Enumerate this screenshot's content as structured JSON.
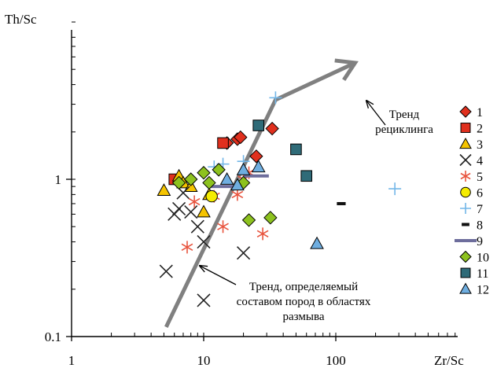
{
  "chart_data": {
    "type": "scatter",
    "xlabel": "Zr/Sc",
    "ylabel": "Th/Sc",
    "x_scale": "log",
    "y_scale": "log",
    "xlim": [
      1,
      300
    ],
    "ylim": [
      0.1,
      10
    ],
    "x_ticks": [
      {
        "value": 1,
        "label": "1"
      },
      {
        "value": 10,
        "label": "10"
      },
      {
        "value": 100,
        "label": "100"
      }
    ],
    "y_ticks": [
      {
        "value": 0.1,
        "label": "0.1"
      },
      {
        "value": 1,
        "label": "1"
      }
    ],
    "grid": false,
    "legend_position": "right",
    "series": [
      {
        "label": "1",
        "marker": "diamond",
        "color": "#e0301e",
        "points": [
          [
            15,
            1.7
          ],
          [
            18,
            1.8
          ],
          [
            19,
            1.85
          ],
          [
            25,
            1.4
          ],
          [
            33,
            2.1
          ]
        ]
      },
      {
        "label": "2",
        "marker": "square",
        "color": "#e0301e",
        "points": [
          [
            6,
            1.0
          ],
          [
            14,
            1.7
          ]
        ]
      },
      {
        "label": "3",
        "marker": "triangle",
        "color": "#f5c400",
        "points": [
          [
            5,
            0.85
          ],
          [
            6.5,
            1.05
          ],
          [
            7,
            0.95
          ],
          [
            8,
            0.9
          ],
          [
            10,
            0.62
          ],
          [
            11,
            0.8
          ]
        ]
      },
      {
        "label": "4",
        "marker": "x",
        "color": "#222222",
        "points": [
          [
            5.2,
            0.26
          ],
          [
            6,
            0.6
          ],
          [
            6.5,
            0.65
          ],
          [
            7,
            0.82
          ],
          [
            8,
            0.62
          ],
          [
            9,
            0.5
          ],
          [
            10,
            0.4
          ],
          [
            10,
            0.17
          ],
          [
            20,
            0.34
          ]
        ]
      },
      {
        "label": "5",
        "marker": "asterisk",
        "color": "#e8553f",
        "points": [
          [
            7.5,
            0.37
          ],
          [
            8.5,
            0.72
          ],
          [
            12,
            0.78
          ],
          [
            14,
            0.5
          ],
          [
            18,
            0.8
          ],
          [
            20,
            1.0
          ],
          [
            22,
            1.1
          ],
          [
            28,
            0.45
          ]
        ]
      },
      {
        "label": "6",
        "marker": "circle",
        "color": "#f5ec00",
        "points": [
          [
            11.5,
            0.78
          ]
        ]
      },
      {
        "label": "7",
        "marker": "plus",
        "color": "#73b7e8",
        "points": [
          [
            10,
            1.1
          ],
          [
            12,
            1.2
          ],
          [
            14,
            1.25
          ],
          [
            20,
            1.3
          ],
          [
            35,
            3.3
          ],
          [
            280,
            0.87
          ]
        ]
      },
      {
        "label": "8",
        "marker": "dash",
        "color": "#111111",
        "points": [
          [
            110,
            0.7
          ]
        ]
      },
      {
        "label": "9",
        "marker": "bar",
        "color": "#6d6d9c",
        "points": [
          [
            14,
            0.9
          ],
          [
            25,
            1.05
          ]
        ]
      },
      {
        "label": "10",
        "marker": "diamond",
        "color": "#8dc21f",
        "points": [
          [
            6.5,
            0.95
          ],
          [
            8,
            1.0
          ],
          [
            10,
            1.1
          ],
          [
            11,
            0.95
          ],
          [
            13,
            1.15
          ],
          [
            20,
            0.95
          ],
          [
            22,
            0.55
          ],
          [
            32,
            0.57
          ]
        ]
      },
      {
        "label": "11",
        "marker": "square",
        "color": "#2f6b78",
        "points": [
          [
            26,
            2.2
          ],
          [
            50,
            1.55
          ],
          [
            60,
            1.05
          ]
        ]
      },
      {
        "label": "12",
        "marker": "triangle",
        "color": "#6faee0",
        "points": [
          [
            15,
            1.0
          ],
          [
            18,
            0.92
          ],
          [
            20,
            1.15
          ],
          [
            26,
            1.2
          ],
          [
            72,
            0.39
          ]
        ]
      }
    ],
    "trend_line": {
      "color": "#808080",
      "points": [
        [
          5.2,
          0.115
        ],
        [
          35,
          3.2
        ],
        [
          140,
          5.5
        ]
      ],
      "arrow_end": true
    },
    "annotations": [
      {
        "text_lines": [
          "Тренд",
          "рециклинга"
        ],
        "arrow_to": [
          100,
          4.9
        ],
        "arrow_from": [
          115,
          2.55
        ]
      },
      {
        "text_lines": [
          "Тренд, определяемый",
          "составом пород в областях",
          "размыва"
        ],
        "arrow_to": [
          9.4,
          0.28
        ],
        "arrow_from": [
          26,
          0.195
        ]
      }
    ]
  }
}
